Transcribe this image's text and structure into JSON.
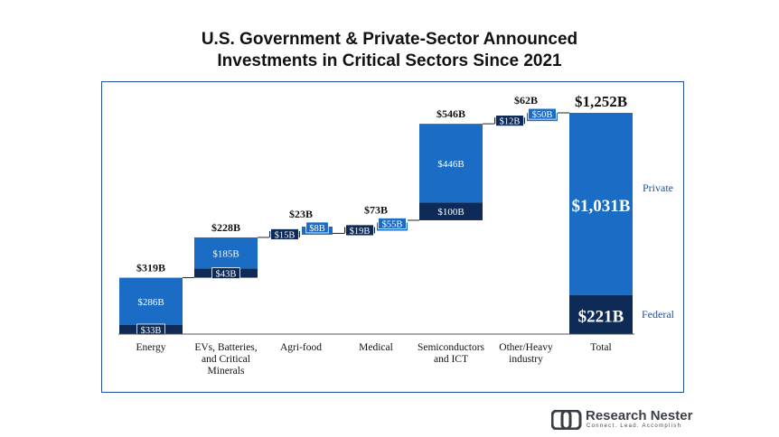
{
  "title_line1": "U.S. Government & Private-Sector Announced",
  "title_line2": "Investments in Critical Sectors Since 2021",
  "logo": {
    "name_part1": "Research",
    "name_part2": "Nester",
    "tagline": "Connect. Lead. Accomplish"
  },
  "colors": {
    "private": "#1a6cc4",
    "federal": "#0e2a57",
    "total_label": "#ffffff",
    "frame": "#1f4e9c",
    "legend_text": "#1f4e9c"
  },
  "chart_data": {
    "type": "bar",
    "subtype": "waterfall-stacked",
    "title": "U.S. Government & Private-Sector Announced Investments in Critical Sectors Since 2021",
    "categories": [
      "Energy",
      "EVs, Batteries, and Critical Minerals",
      "Agri-food",
      "Medical",
      "Semiconductors and ICT",
      "Other/Heavy industry",
      "Total"
    ],
    "category_lines": [
      [
        "Energy"
      ],
      [
        "EVs, Batteries,",
        "and Critical",
        "Minerals"
      ],
      [
        "Agri-food"
      ],
      [
        "Medical"
      ],
      [
        "Semiconductors",
        "and ICT"
      ],
      [
        "Other/Heavy",
        "industry"
      ],
      [
        "Total"
      ]
    ],
    "series": [
      {
        "name": "Federal",
        "values": [
          33,
          43,
          15,
          19,
          100,
          12,
          221
        ],
        "labels": [
          "$33B",
          "$43B",
          "$15B",
          "$19B",
          "$100B",
          "$12B",
          "$221B"
        ]
      },
      {
        "name": "Private",
        "values": [
          286,
          185,
          8,
          55,
          446,
          50,
          1031
        ],
        "labels": [
          "$286B",
          "$185B",
          "$8B",
          "$55B",
          "$446B",
          "$50B",
          "$1,031B"
        ]
      }
    ],
    "totals": [
      319,
      228,
      23,
      73,
      546,
      62,
      1252
    ],
    "total_labels": [
      "$319B",
      "$228B",
      "$23B",
      "$73B",
      "$546B",
      "$62B",
      "$1,252B"
    ],
    "side_by_side": [
      false,
      false,
      true,
      true,
      false,
      true,
      false
    ],
    "legend": [
      "Private",
      "Federal"
    ],
    "legend_placement": "right",
    "ylim": [
      0,
      1252
    ],
    "grid": false
  }
}
